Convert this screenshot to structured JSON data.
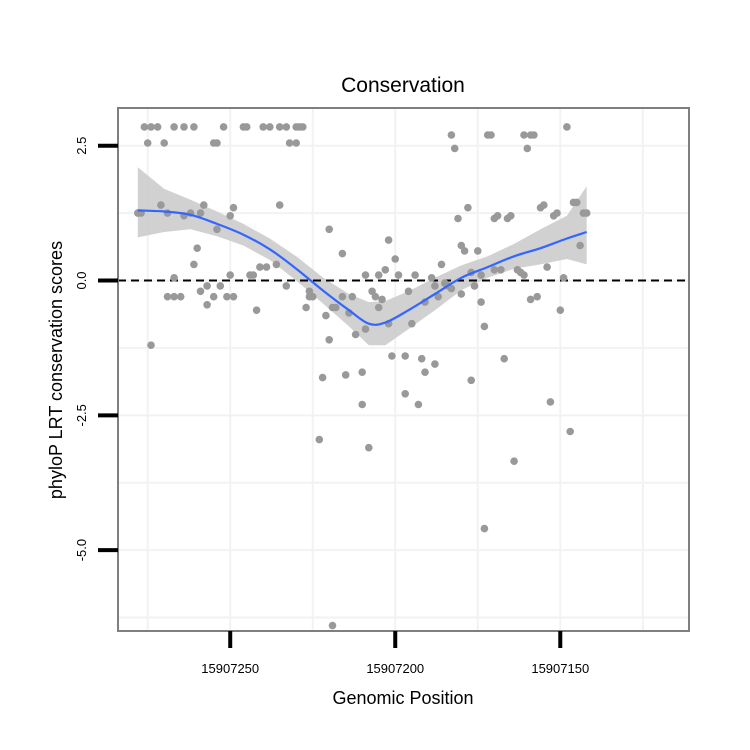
{
  "chart_data": {
    "type": "scatter",
    "title": "Conservation",
    "xlabel": "Genomic Position",
    "ylabel": "phyloP LRT conservation scores",
    "x_reversed": true,
    "xlim": [
      15907284,
      15907111
    ],
    "ylim": [
      -6.5,
      3.2
    ],
    "x_ticks": [
      15907250,
      15907200,
      15907150
    ],
    "x_tick_labels": [
      "15907250",
      "15907200",
      "15907150"
    ],
    "y_ticks": [
      2.5,
      0.0,
      -2.5,
      -5.0
    ],
    "y_tick_labels": [
      "2.5",
      "0.0",
      "-2.5",
      "-5.0"
    ],
    "grid": true,
    "reference_line": {
      "y": 0,
      "style": "dashed"
    },
    "colors": {
      "points": "#999999",
      "smooth_line": "#3366ff",
      "confidence_band": "#cccccc",
      "panel_border": "#7f7f7f",
      "grid": "#f2f2f2"
    },
    "points": [
      {
        "x": 15907278,
        "y": 1.25
      },
      {
        "x": 15907277,
        "y": 1.25
      },
      {
        "x": 15907276,
        "y": 2.85
      },
      {
        "x": 15907274,
        "y": 2.85
      },
      {
        "x": 15907275,
        "y": 2.55
      },
      {
        "x": 15907274,
        "y": -1.2
      },
      {
        "x": 15907272,
        "y": 2.85
      },
      {
        "x": 15907271,
        "y": 1.4
      },
      {
        "x": 15907270,
        "y": 2.55
      },
      {
        "x": 15907269,
        "y": -0.3
      },
      {
        "x": 15907269,
        "y": 1.25
      },
      {
        "x": 15907267,
        "y": 0.05
      },
      {
        "x": 15907267,
        "y": -0.3
      },
      {
        "x": 15907267,
        "y": 2.85
      },
      {
        "x": 15907265,
        "y": -0.3
      },
      {
        "x": 15907264,
        "y": 2.85
      },
      {
        "x": 15907264,
        "y": 1.2
      },
      {
        "x": 15907261,
        "y": 2.85
      },
      {
        "x": 15907262,
        "y": 1.25
      },
      {
        "x": 15907261,
        "y": 0.3
      },
      {
        "x": 15907260,
        "y": 0.6
      },
      {
        "x": 15907259,
        "y": -0.2
      },
      {
        "x": 15907257,
        "y": -0.1
      },
      {
        "x": 15907259,
        "y": 1.25
      },
      {
        "x": 15907258,
        "y": 1.4
      },
      {
        "x": 15907257,
        "y": -0.45
      },
      {
        "x": 15907255,
        "y": 2.55
      },
      {
        "x": 15907254,
        "y": 2.55
      },
      {
        "x": 15907255,
        "y": -0.3
      },
      {
        "x": 15907254,
        "y": 0.95
      },
      {
        "x": 15907253,
        "y": -0.1
      },
      {
        "x": 15907252,
        "y": 2.85
      },
      {
        "x": 15907251,
        "y": -0.3
      },
      {
        "x": 15907250,
        "y": 0.1
      },
      {
        "x": 15907249,
        "y": 1.35
      },
      {
        "x": 15907250,
        "y": 1.2
      },
      {
        "x": 15907249,
        "y": -0.3
      },
      {
        "x": 15907246,
        "y": 2.85
      },
      {
        "x": 15907245,
        "y": 2.85
      },
      {
        "x": 15907244,
        "y": 0.1
      },
      {
        "x": 15907243,
        "y": 0.1
      },
      {
        "x": 15907242,
        "y": -0.55
      },
      {
        "x": 15907241,
        "y": 0.25
      },
      {
        "x": 15907240,
        "y": 2.85
      },
      {
        "x": 15907239,
        "y": 0.25
      },
      {
        "x": 15907238,
        "y": 2.85
      },
      {
        "x": 15907236,
        "y": 0.3
      },
      {
        "x": 15907235,
        "y": 2.85
      },
      {
        "x": 15907235,
        "y": 1.4
      },
      {
        "x": 15907233,
        "y": 2.85
      },
      {
        "x": 15907233,
        "y": -0.1
      },
      {
        "x": 15907232,
        "y": 2.55
      },
      {
        "x": 15907230,
        "y": 2.55
      },
      {
        "x": 15907230,
        "y": 2.85
      },
      {
        "x": 15907229,
        "y": 2.85
      },
      {
        "x": 15907227,
        "y": -0.5
      },
      {
        "x": 15907228,
        "y": 2.85
      },
      {
        "x": 15907226,
        "y": -0.2
      },
      {
        "x": 15907226,
        "y": -0.3
      },
      {
        "x": 15907225,
        "y": -0.3
      },
      {
        "x": 15907223,
        "y": -2.95
      },
      {
        "x": 15907222,
        "y": -1.8
      },
      {
        "x": 15907221,
        "y": -0.65
      },
      {
        "x": 15907220,
        "y": -1.1
      },
      {
        "x": 15907220,
        "y": 0.95
      },
      {
        "x": 15907219,
        "y": -0.5
      },
      {
        "x": 15907219,
        "y": -6.4
      },
      {
        "x": 15907218,
        "y": -0.5
      },
      {
        "x": 15907216,
        "y": -0.3
      },
      {
        "x": 15907216,
        "y": 0.5
      },
      {
        "x": 15907215,
        "y": -1.75
      },
      {
        "x": 15907214,
        "y": -0.6
      },
      {
        "x": 15907212,
        "y": -1.0
      },
      {
        "x": 15907213,
        "y": -0.3
      },
      {
        "x": 15907210,
        "y": -1.7
      },
      {
        "x": 15907210,
        "y": -2.3
      },
      {
        "x": 15907209,
        "y": -0.9
      },
      {
        "x": 15907209,
        "y": 0.1
      },
      {
        "x": 15907208,
        "y": -3.1
      },
      {
        "x": 15907207,
        "y": -0.2
      },
      {
        "x": 15907206,
        "y": -0.3
      },
      {
        "x": 15907205,
        "y": -0.5
      },
      {
        "x": 15907205,
        "y": 0.1
      },
      {
        "x": 15907204,
        "y": -0.35
      },
      {
        "x": 15907203,
        "y": 0.2
      },
      {
        "x": 15907202,
        "y": 0.75
      },
      {
        "x": 15907202,
        "y": -0.8
      },
      {
        "x": 15907201,
        "y": -1.4
      },
      {
        "x": 15907200,
        "y": 0.4
      },
      {
        "x": 15907199,
        "y": 0.1
      },
      {
        "x": 15907197,
        "y": -1.4
      },
      {
        "x": 15907197,
        "y": -2.1
      },
      {
        "x": 15907196,
        "y": -0.2
      },
      {
        "x": 15907195,
        "y": -0.8
      },
      {
        "x": 15907194,
        "y": 0.1
      },
      {
        "x": 15907193,
        "y": -2.3
      },
      {
        "x": 15907192,
        "y": -1.45
      },
      {
        "x": 15907191,
        "y": -0.4
      },
      {
        "x": 15907191,
        "y": -1.7
      },
      {
        "x": 15907189,
        "y": 0.05
      },
      {
        "x": 15907188,
        "y": -1.55
      },
      {
        "x": 15907188,
        "y": -0.1
      },
      {
        "x": 15907187,
        "y": -0.3
      },
      {
        "x": 15907186,
        "y": 0.3
      },
      {
        "x": 15907185,
        "y": -0.05
      },
      {
        "x": 15907184,
        "y": -0.1
      },
      {
        "x": 15907183,
        "y": 2.7
      },
      {
        "x": 15907183,
        "y": -0.15
      },
      {
        "x": 15907182,
        "y": 2.45
      },
      {
        "x": 15907181,
        "y": 1.15
      },
      {
        "x": 15907180,
        "y": 0.65
      },
      {
        "x": 15907180,
        "y": -0.25
      },
      {
        "x": 15907179,
        "y": 0.55
      },
      {
        "x": 15907178,
        "y": 1.35
      },
      {
        "x": 15907177,
        "y": -1.85
      },
      {
        "x": 15907177,
        "y": 0.15
      },
      {
        "x": 15907176,
        "y": -0.1
      },
      {
        "x": 15907175,
        "y": 0.55
      },
      {
        "x": 15907174,
        "y": -0.4
      },
      {
        "x": 15907174,
        "y": 0.1
      },
      {
        "x": 15907173,
        "y": -4.6
      },
      {
        "x": 15907173,
        "y": -0.85
      },
      {
        "x": 15907172,
        "y": 2.7
      },
      {
        "x": 15907171,
        "y": 2.7
      },
      {
        "x": 15907170,
        "y": 0.2
      },
      {
        "x": 15907170,
        "y": 1.15
      },
      {
        "x": 15907169,
        "y": 1.2
      },
      {
        "x": 15907168,
        "y": 0.2
      },
      {
        "x": 15907167,
        "y": -1.45
      },
      {
        "x": 15907166,
        "y": 1.15
      },
      {
        "x": 15907165,
        "y": 1.2
      },
      {
        "x": 15907164,
        "y": -3.35
      },
      {
        "x": 15907163,
        "y": 0.2
      },
      {
        "x": 15907162,
        "y": 0.15
      },
      {
        "x": 15907161,
        "y": 0.1
      },
      {
        "x": 15907161,
        "y": 2.7
      },
      {
        "x": 15907160,
        "y": 2.45
      },
      {
        "x": 15907159,
        "y": -0.35
      },
      {
        "x": 15907159,
        "y": 2.7
      },
      {
        "x": 15907158,
        "y": 2.7
      },
      {
        "x": 15907157,
        "y": -0.3
      },
      {
        "x": 15907156,
        "y": 1.35
      },
      {
        "x": 15907155,
        "y": 1.4
      },
      {
        "x": 15907154,
        "y": 0.25
      },
      {
        "x": 15907153,
        "y": -2.25
      },
      {
        "x": 15907152,
        "y": 1.2
      },
      {
        "x": 15907151,
        "y": 1.25
      },
      {
        "x": 15907150,
        "y": -0.55
      },
      {
        "x": 15907149,
        "y": 0.05
      },
      {
        "x": 15907148,
        "y": 2.85
      },
      {
        "x": 15907147,
        "y": -2.8
      },
      {
        "x": 15907146,
        "y": 1.45
      },
      {
        "x": 15907145,
        "y": 1.45
      },
      {
        "x": 15907144,
        "y": 0.65
      },
      {
        "x": 15907143,
        "y": 1.25
      },
      {
        "x": 15907142,
        "y": 1.25
      }
    ],
    "smooth": {
      "method": "loess",
      "x": [
        15907278,
        15907270,
        15907262,
        15907254,
        15907246,
        15907238,
        15907230,
        15907222,
        15907214,
        15907208,
        15907203,
        15907196,
        15907188,
        15907180,
        15907172,
        15907164,
        15907156,
        15907148,
        15907142
      ],
      "y": [
        1.3,
        1.28,
        1.22,
        1.05,
        0.85,
        0.58,
        0.22,
        -0.18,
        -0.55,
        -0.8,
        -0.78,
        -0.55,
        -0.25,
        0.05,
        0.25,
        0.45,
        0.6,
        0.78,
        0.9
      ],
      "lower": [
        0.8,
        0.9,
        0.95,
        0.82,
        0.65,
        0.38,
        0.0,
        -0.42,
        -0.85,
        -1.2,
        -1.2,
        -0.9,
        -0.55,
        -0.18,
        0.05,
        0.22,
        0.3,
        0.4,
        0.3
      ],
      "upper": [
        2.1,
        1.7,
        1.5,
        1.28,
        1.05,
        0.78,
        0.45,
        0.06,
        -0.25,
        -0.4,
        -0.38,
        -0.2,
        0.05,
        0.28,
        0.45,
        0.68,
        0.95,
        1.2,
        1.75
      ]
    }
  }
}
